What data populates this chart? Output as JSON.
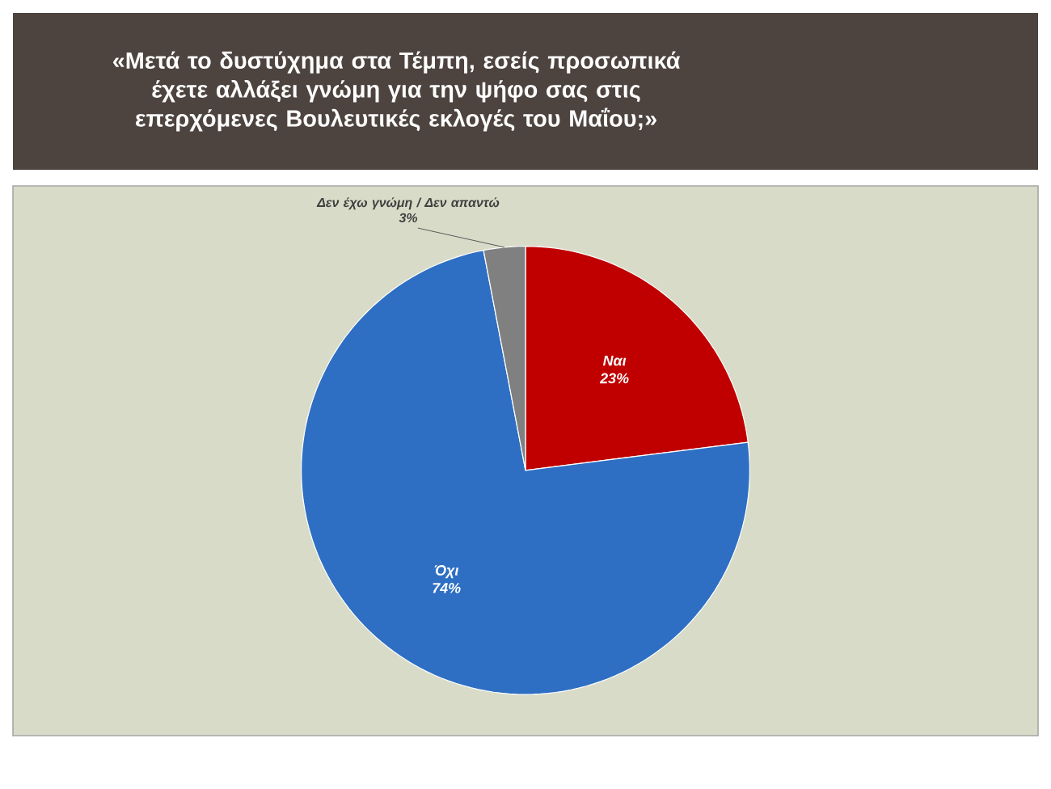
{
  "chart_data": {
    "type": "pie",
    "title": "«Μετά το δυστύχημα στα Τέμπη, εσείς προσωπικά έχετε αλλάξει γνώμη για την ψήφο σας στις επερχόμενες Βουλευτικές εκλογές του Μαΐου;»",
    "categories": [
      "Ναι",
      "Όχι",
      "Δεν έχω γνώμη / Δεν απαντώ"
    ],
    "values": [
      23,
      74,
      3
    ],
    "value_labels": [
      "23%",
      "74%",
      "3%"
    ],
    "colors": [
      "#c00000",
      "#2e6fc4",
      "#808080"
    ]
  }
}
